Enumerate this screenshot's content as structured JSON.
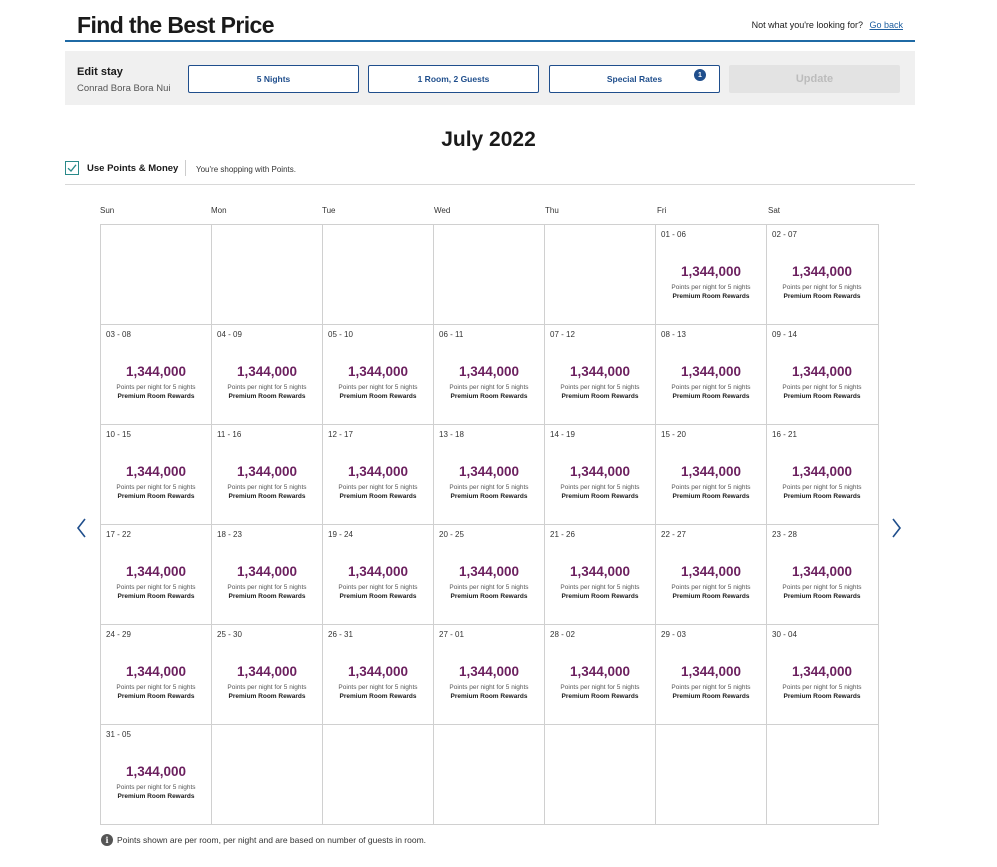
{
  "header": {
    "title": "Find the Best Price",
    "not_looking_text": "Not what you're looking for?",
    "go_back_label": "Go back"
  },
  "edit_stay": {
    "title": "Edit stay",
    "hotel": "Conrad Bora Bora Nui",
    "nights_label": "5 Nights",
    "rooms_guests_label": "1 Room, 2 Guests",
    "special_rates_label": "Special Rates",
    "special_rates_badge": "1",
    "update_label": "Update"
  },
  "month": "July 2022",
  "points_toggle": {
    "label": "Use Points & Money",
    "checked": true,
    "note": "You're shopping with Points."
  },
  "weekdays": [
    "Sun",
    "Mon",
    "Tue",
    "Wed",
    "Thu",
    "Fri",
    "Sat"
  ],
  "calendar": {
    "cells": [
      {
        "date": ""
      },
      {
        "date": ""
      },
      {
        "date": ""
      },
      {
        "date": ""
      },
      {
        "date": ""
      },
      {
        "date": "01 - 06",
        "price": "1,344,000",
        "sub": "Points per night for 5 nights",
        "rate": "Premium Room Rewards"
      },
      {
        "date": "02 - 07",
        "price": "1,344,000",
        "sub": "Points per night for 5 nights",
        "rate": "Premium Room Rewards"
      },
      {
        "date": "03 - 08",
        "price": "1,344,000",
        "sub": "Points per night for 5 nights",
        "rate": "Premium Room Rewards"
      },
      {
        "date": "04 - 09",
        "price": "1,344,000",
        "sub": "Points per night for 5 nights",
        "rate": "Premium Room Rewards"
      },
      {
        "date": "05 - 10",
        "price": "1,344,000",
        "sub": "Points per night for 5 nights",
        "rate": "Premium Room Rewards"
      },
      {
        "date": "06 - 11",
        "price": "1,344,000",
        "sub": "Points per night for 5 nights",
        "rate": "Premium Room Rewards"
      },
      {
        "date": "07 - 12",
        "price": "1,344,000",
        "sub": "Points per night for 5 nights",
        "rate": "Premium Room Rewards"
      },
      {
        "date": "08 - 13",
        "price": "1,344,000",
        "sub": "Points per night for 5 nights",
        "rate": "Premium Room Rewards"
      },
      {
        "date": "09 - 14",
        "price": "1,344,000",
        "sub": "Points per night for 5 nights",
        "rate": "Premium Room Rewards"
      },
      {
        "date": "10 - 15",
        "price": "1,344,000",
        "sub": "Points per night for 5 nights",
        "rate": "Premium Room Rewards"
      },
      {
        "date": "11 - 16",
        "price": "1,344,000",
        "sub": "Points per night for 5 nights",
        "rate": "Premium Room Rewards"
      },
      {
        "date": "12 - 17",
        "price": "1,344,000",
        "sub": "Points per night for 5 nights",
        "rate": "Premium Room Rewards"
      },
      {
        "date": "13 - 18",
        "price": "1,344,000",
        "sub": "Points per night for 5 nights",
        "rate": "Premium Room Rewards"
      },
      {
        "date": "14 - 19",
        "price": "1,344,000",
        "sub": "Points per night for 5 nights",
        "rate": "Premium Room Rewards"
      },
      {
        "date": "15 - 20",
        "price": "1,344,000",
        "sub": "Points per night for 5 nights",
        "rate": "Premium Room Rewards"
      },
      {
        "date": "16 - 21",
        "price": "1,344,000",
        "sub": "Points per night for 5 nights",
        "rate": "Premium Room Rewards"
      },
      {
        "date": "17 - 22",
        "price": "1,344,000",
        "sub": "Points per night for 5 nights",
        "rate": "Premium Room Rewards"
      },
      {
        "date": "18 - 23",
        "price": "1,344,000",
        "sub": "Points per night for 5 nights",
        "rate": "Premium Room Rewards"
      },
      {
        "date": "19 - 24",
        "price": "1,344,000",
        "sub": "Points per night for 5 nights",
        "rate": "Premium Room Rewards"
      },
      {
        "date": "20 - 25",
        "price": "1,344,000",
        "sub": "Points per night for 5 nights",
        "rate": "Premium Room Rewards"
      },
      {
        "date": "21 - 26",
        "price": "1,344,000",
        "sub": "Points per night for 5 nights",
        "rate": "Premium Room Rewards"
      },
      {
        "date": "22 - 27",
        "price": "1,344,000",
        "sub": "Points per night for 5 nights",
        "rate": "Premium Room Rewards"
      },
      {
        "date": "23 - 28",
        "price": "1,344,000",
        "sub": "Points per night for 5 nights",
        "rate": "Premium Room Rewards"
      },
      {
        "date": "24 - 29",
        "price": "1,344,000",
        "sub": "Points per night for 5 nights",
        "rate": "Premium Room Rewards"
      },
      {
        "date": "25 - 30",
        "price": "1,344,000",
        "sub": "Points per night for 5 nights",
        "rate": "Premium Room Rewards"
      },
      {
        "date": "26 - 31",
        "price": "1,344,000",
        "sub": "Points per night for 5 nights",
        "rate": "Premium Room Rewards"
      },
      {
        "date": "27 - 01",
        "price": "1,344,000",
        "sub": "Points per night for 5 nights",
        "rate": "Premium Room Rewards"
      },
      {
        "date": "28 - 02",
        "price": "1,344,000",
        "sub": "Points per night for 5 nights",
        "rate": "Premium Room Rewards"
      },
      {
        "date": "29 - 03",
        "price": "1,344,000",
        "sub": "Points per night for 5 nights",
        "rate": "Premium Room Rewards"
      },
      {
        "date": "30 - 04",
        "price": "1,344,000",
        "sub": "Points per night for 5 nights",
        "rate": "Premium Room Rewards"
      },
      {
        "date": "31 - 05",
        "price": "1,344,000",
        "sub": "Points per night for 5 nights",
        "rate": "Premium Room Rewards"
      },
      {
        "date": ""
      },
      {
        "date": ""
      },
      {
        "date": ""
      },
      {
        "date": ""
      },
      {
        "date": ""
      },
      {
        "date": ""
      }
    ]
  },
  "footnote": "Points shown are per room, per night and are based on number of guests in room.",
  "icons": {
    "prev": "chevron-left-icon",
    "next": "chevron-right-icon",
    "info": "info-icon",
    "check": "check-icon"
  },
  "colors": {
    "price": "#6b1f5e",
    "accent": "#1f4e8c",
    "checkbox": "#2a8a8a",
    "header_rule": "#1f6aa5"
  }
}
